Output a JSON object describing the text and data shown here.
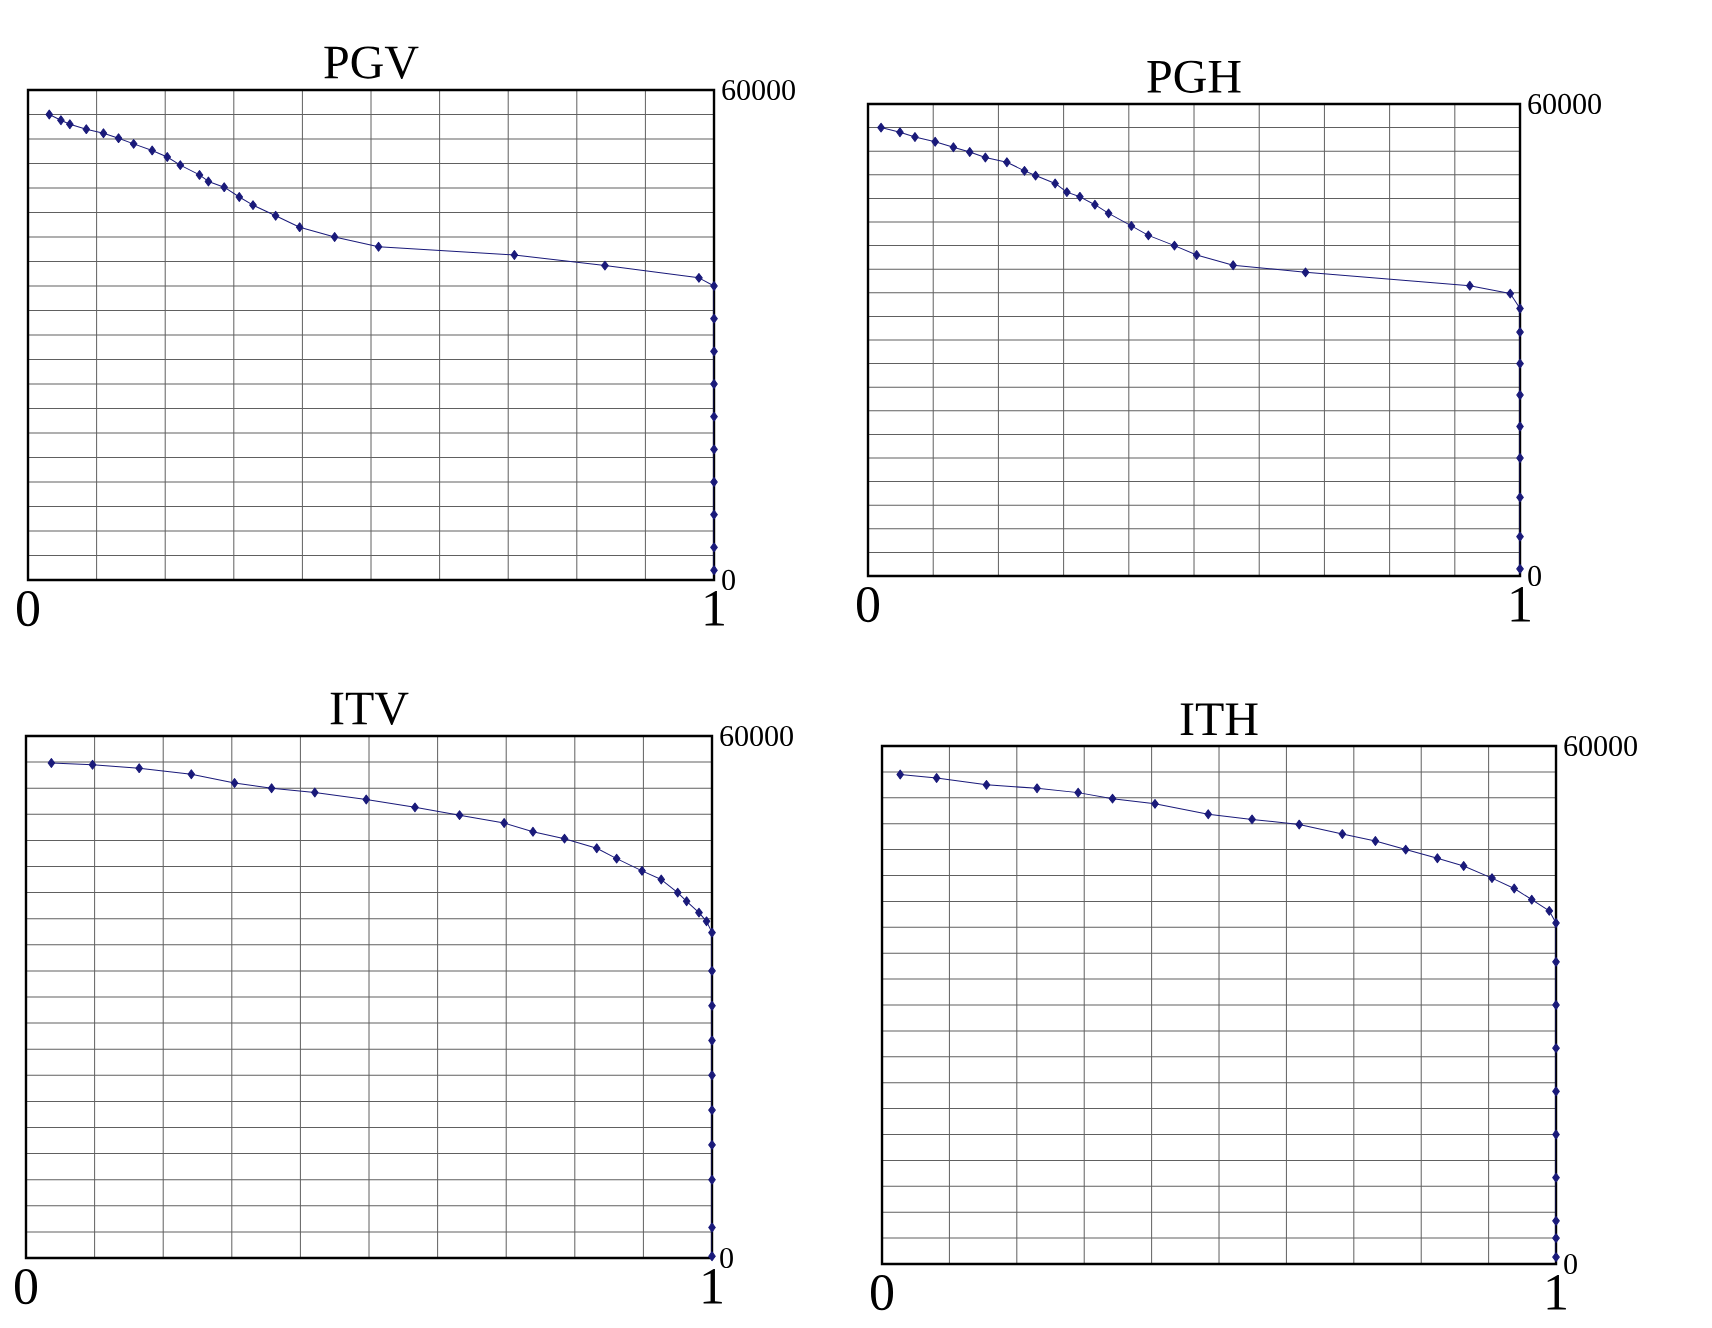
{
  "chart_data": [
    {
      "type": "line",
      "title": "PGV",
      "color": "#1a1a7a",
      "marker": "diamond",
      "line_style": "solid",
      "grid": true,
      "xlim": [
        0,
        1
      ],
      "ylim": [
        0,
        60000
      ],
      "xticks": [
        0,
        {
          "value": 0.1,
          "label": null
        },
        {
          "value": 0.2,
          "label": null
        },
        {
          "value": 0.3,
          "label": null
        },
        {
          "value": 0.4,
          "label": null
        },
        {
          "value": 0.5,
          "label": null
        },
        {
          "value": 0.6,
          "label": null
        },
        {
          "value": 0.7,
          "label": null
        },
        {
          "value": 0.8,
          "label": null
        },
        {
          "value": 0.9,
          "label": null
        },
        1
      ],
      "yticks": [
        0,
        {
          "value": 3000,
          "label": null
        },
        {
          "value": 6000,
          "label": null
        },
        {
          "value": 9000,
          "label": null
        },
        {
          "value": 12000,
          "label": null
        },
        {
          "value": 15000,
          "label": null
        },
        {
          "value": 18000,
          "label": null
        },
        {
          "value": 21000,
          "label": null
        },
        {
          "value": 24000,
          "label": null
        },
        {
          "value": 27000,
          "label": null
        },
        {
          "value": 30000,
          "label": null
        },
        {
          "value": 33000,
          "label": null
        },
        {
          "value": 36000,
          "label": null
        },
        {
          "value": 39000,
          "label": null
        },
        {
          "value": 42000,
          "label": null
        },
        {
          "value": 45000,
          "label": null
        },
        {
          "value": 48000,
          "label": null
        },
        {
          "value": 51000,
          "label": null
        },
        {
          "value": 54000,
          "label": null
        },
        {
          "value": 57000,
          "label": null
        },
        60000
      ],
      "x": [
        0.031,
        0.048,
        0.061,
        0.085,
        0.11,
        0.132,
        0.154,
        0.181,
        0.203,
        0.222,
        0.25,
        0.263,
        0.286,
        0.308,
        0.328,
        0.361,
        0.396,
        0.447,
        0.511,
        0.709,
        0.841,
        0.978,
        1,
        1,
        1,
        1,
        1,
        1,
        1,
        1,
        1,
        1
      ],
      "values": [
        57000,
        56300,
        55800,
        55200,
        54700,
        54100,
        53400,
        52600,
        51800,
        50800,
        49600,
        48800,
        48100,
        46900,
        45900,
        44600,
        43200,
        42000,
        40800,
        39800,
        38500,
        37000,
        36000,
        32000,
        28000,
        24000,
        20000,
        16000,
        12000,
        8000,
        4000,
        1200
      ]
    },
    {
      "type": "line",
      "title": "PGH",
      "color": "#1a1a7a",
      "marker": "diamond",
      "line_style": "solid",
      "grid": true,
      "xlim": [
        0,
        1
      ],
      "ylim": [
        0,
        60000
      ],
      "xticks": [
        0,
        {
          "value": 0.1,
          "label": null
        },
        {
          "value": 0.2,
          "label": null
        },
        {
          "value": 0.3,
          "label": null
        },
        {
          "value": 0.4,
          "label": null
        },
        {
          "value": 0.5,
          "label": null
        },
        {
          "value": 0.6,
          "label": null
        },
        {
          "value": 0.7,
          "label": null
        },
        {
          "value": 0.8,
          "label": null
        },
        {
          "value": 0.9,
          "label": null
        },
        1
      ],
      "yticks": [
        0,
        {
          "value": 3000,
          "label": null
        },
        {
          "value": 6000,
          "label": null
        },
        {
          "value": 9000,
          "label": null
        },
        {
          "value": 12000,
          "label": null
        },
        {
          "value": 15000,
          "label": null
        },
        {
          "value": 18000,
          "label": null
        },
        {
          "value": 21000,
          "label": null
        },
        {
          "value": 24000,
          "label": null
        },
        {
          "value": 27000,
          "label": null
        },
        {
          "value": 30000,
          "label": null
        },
        {
          "value": 33000,
          "label": null
        },
        {
          "value": 36000,
          "label": null
        },
        {
          "value": 39000,
          "label": null
        },
        {
          "value": 42000,
          "label": null
        },
        {
          "value": 45000,
          "label": null
        },
        {
          "value": 48000,
          "label": null
        },
        {
          "value": 51000,
          "label": null
        },
        {
          "value": 54000,
          "label": null
        },
        {
          "value": 57000,
          "label": null
        },
        60000
      ],
      "x": [
        0.02,
        0.049,
        0.072,
        0.103,
        0.131,
        0.156,
        0.18,
        0.213,
        0.24,
        0.257,
        0.287,
        0.305,
        0.325,
        0.348,
        0.369,
        0.404,
        0.43,
        0.47,
        0.504,
        0.56,
        0.671,
        0.923,
        0.985,
        1,
        1,
        1,
        1,
        1,
        1,
        1,
        1,
        1
      ],
      "values": [
        57000,
        56400,
        55800,
        55200,
        54500,
        53900,
        53200,
        52600,
        51500,
        50900,
        49900,
        48800,
        48200,
        47200,
        46100,
        44500,
        43300,
        42000,
        40800,
        39500,
        38600,
        36900,
        35900,
        34000,
        31000,
        27000,
        23000,
        19000,
        15000,
        10000,
        5000,
        900
      ]
    },
    {
      "type": "line",
      "title": "ITV",
      "color": "#1a1a7a",
      "marker": "diamond",
      "line_style": "solid",
      "grid": true,
      "xlim": [
        0,
        1
      ],
      "ylim": [
        0,
        60000
      ],
      "xticks": [
        0,
        {
          "value": 0.1,
          "label": null
        },
        {
          "value": 0.2,
          "label": null
        },
        {
          "value": 0.3,
          "label": null
        },
        {
          "value": 0.4,
          "label": null
        },
        {
          "value": 0.5,
          "label": null
        },
        {
          "value": 0.6,
          "label": null
        },
        {
          "value": 0.7,
          "label": null
        },
        {
          "value": 0.8,
          "label": null
        },
        {
          "value": 0.9,
          "label": null
        },
        1
      ],
      "yticks": [
        0,
        {
          "value": 3000,
          "label": null
        },
        {
          "value": 6000,
          "label": null
        },
        {
          "value": 9000,
          "label": null
        },
        {
          "value": 12000,
          "label": null
        },
        {
          "value": 15000,
          "label": null
        },
        {
          "value": 18000,
          "label": null
        },
        {
          "value": 21000,
          "label": null
        },
        {
          "value": 24000,
          "label": null
        },
        {
          "value": 27000,
          "label": null
        },
        {
          "value": 30000,
          "label": null
        },
        {
          "value": 33000,
          "label": null
        },
        {
          "value": 36000,
          "label": null
        },
        {
          "value": 39000,
          "label": null
        },
        {
          "value": 42000,
          "label": null
        },
        {
          "value": 45000,
          "label": null
        },
        {
          "value": 48000,
          "label": null
        },
        {
          "value": 51000,
          "label": null
        },
        {
          "value": 54000,
          "label": null
        },
        {
          "value": 57000,
          "label": null
        },
        60000
      ],
      "x": [
        0.037,
        0.097,
        0.165,
        0.241,
        0.304,
        0.358,
        0.421,
        0.496,
        0.567,
        0.632,
        0.697,
        0.739,
        0.785,
        0.832,
        0.861,
        0.898,
        0.926,
        0.95,
        0.963,
        0.981,
        0.992,
        1,
        1,
        1,
        1,
        1,
        1,
        1,
        1,
        1,
        1
      ],
      "values": [
        56900,
        56700,
        56300,
        55600,
        54600,
        54000,
        53500,
        52700,
        51800,
        50900,
        50000,
        49000,
        48200,
        47100,
        45900,
        44500,
        43500,
        42000,
        41000,
        39700,
        38700,
        37400,
        33000,
        29000,
        25000,
        21000,
        17000,
        13000,
        9000,
        3500,
        200
      ]
    },
    {
      "type": "line",
      "title": "ITH",
      "color": "#1a1a7a",
      "marker": "diamond",
      "line_style": "solid",
      "grid": true,
      "xlim": [
        0,
        1
      ],
      "ylim": [
        0,
        60000
      ],
      "xticks": [
        0,
        {
          "value": 0.1,
          "label": null
        },
        {
          "value": 0.2,
          "label": null
        },
        {
          "value": 0.3,
          "label": null
        },
        {
          "value": 0.4,
          "label": null
        },
        {
          "value": 0.5,
          "label": null
        },
        {
          "value": 0.6,
          "label": null
        },
        {
          "value": 0.7,
          "label": null
        },
        {
          "value": 0.8,
          "label": null
        },
        {
          "value": 0.9,
          "label": null
        },
        1
      ],
      "yticks": [
        0,
        {
          "value": 3000,
          "label": null
        },
        {
          "value": 6000,
          "label": null
        },
        {
          "value": 9000,
          "label": null
        },
        {
          "value": 12000,
          "label": null
        },
        {
          "value": 15000,
          "label": null
        },
        {
          "value": 18000,
          "label": null
        },
        {
          "value": 21000,
          "label": null
        },
        {
          "value": 24000,
          "label": null
        },
        {
          "value": 27000,
          "label": null
        },
        {
          "value": 30000,
          "label": null
        },
        {
          "value": 33000,
          "label": null
        },
        {
          "value": 36000,
          "label": null
        },
        {
          "value": 39000,
          "label": null
        },
        {
          "value": 42000,
          "label": null
        },
        {
          "value": 45000,
          "label": null
        },
        {
          "value": 48000,
          "label": null
        },
        {
          "value": 51000,
          "label": null
        },
        {
          "value": 54000,
          "label": null
        },
        {
          "value": 57000,
          "label": null
        },
        60000
      ],
      "x": [
        0.027,
        0.081,
        0.155,
        0.23,
        0.291,
        0.342,
        0.405,
        0.484,
        0.549,
        0.619,
        0.683,
        0.732,
        0.777,
        0.824,
        0.863,
        0.905,
        0.938,
        0.964,
        0.99,
        1,
        1,
        1,
        1,
        1,
        1,
        1,
        1,
        1,
        1
      ],
      "values": [
        56700,
        56300,
        55500,
        55100,
        54600,
        53900,
        53300,
        52100,
        51500,
        50900,
        49800,
        49000,
        48000,
        47000,
        46100,
        44700,
        43500,
        42200,
        40900,
        39500,
        35000,
        30000,
        25000,
        20000,
        15000,
        10000,
        5000,
        3000,
        800
      ]
    }
  ]
}
